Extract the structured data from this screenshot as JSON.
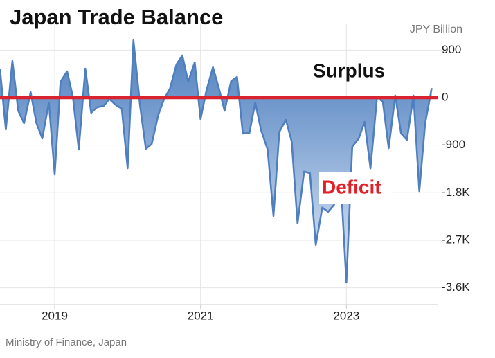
{
  "chart_data": {
    "type": "area",
    "title": "Japan Trade Balance",
    "unit_label": "JPY Billion",
    "annotations": [
      "Surplus",
      "Deficit"
    ],
    "source": "Ministry of Finance, Japan",
    "color": "#4f7fbf",
    "baseline_color": "#d9232e",
    "grid": true,
    "x": [
      2018.25,
      2018.33,
      2018.42,
      2018.5,
      2018.58,
      2018.67,
      2018.75,
      2018.83,
      2018.92,
      2019,
      2019.08,
      2019.17,
      2019.25,
      2019.33,
      2019.42,
      2019.5,
      2019.58,
      2019.67,
      2019.75,
      2019.83,
      2019.92,
      2020,
      2020.08,
      2020.17,
      2020.25,
      2020.33,
      2020.42,
      2020.5,
      2020.58,
      2020.67,
      2020.75,
      2020.83,
      2020.92,
      2021,
      2021.08,
      2021.17,
      2021.25,
      2021.33,
      2021.42,
      2021.5,
      2021.58,
      2021.67,
      2021.75,
      2021.83,
      2021.92,
      2022,
      2022.08,
      2022.17,
      2022.25,
      2022.33,
      2022.42,
      2022.5,
      2022.58,
      2022.67,
      2022.75,
      2022.83,
      2022.92,
      2023,
      2023.08,
      2023.17,
      2023.25,
      2023.33,
      2023.42,
      2023.5,
      2023.58,
      2023.67,
      2023.75,
      2023.83,
      2023.92,
      2024,
      2024.08,
      2024.17
    ],
    "values": [
      537,
      -603,
      694,
      -249,
      -485,
      105,
      -485,
      -773,
      -92,
      -1454,
      301,
      498,
      13,
      -983,
      550,
      -288,
      -183,
      -157,
      -26,
      -131,
      -210,
      -1336,
      1087,
      -144,
      -969,
      -878,
      -328,
      -26,
      170,
      629,
      799,
      301,
      668,
      -406,
      131,
      576,
      183,
      -249,
      314,
      393,
      -681,
      -668,
      -92,
      -616,
      -983,
      -2240,
      -650,
      -420,
      -830,
      -2380,
      -1400,
      -1430,
      -2790,
      -2080,
      -2160,
      -2030,
      -1500,
      -3500,
      -930,
      -770,
      -460,
      -1340,
      10,
      -80,
      -956,
      40,
      -680,
      -800,
      40,
      -1770,
      -485,
      180
    ],
    "xlim": [
      2018.25,
      2024.25
    ],
    "xticks": [
      2019,
      2021,
      2023
    ],
    "ylim": [
      -3920,
      1390
    ],
    "yticks": [
      900,
      0,
      -900,
      {
        "value": -1800,
        "label": "-1.8K"
      },
      {
        "value": -2700,
        "label": "-2.7K"
      },
      {
        "value": -3600,
        "label": "-3.6K"
      }
    ]
  }
}
